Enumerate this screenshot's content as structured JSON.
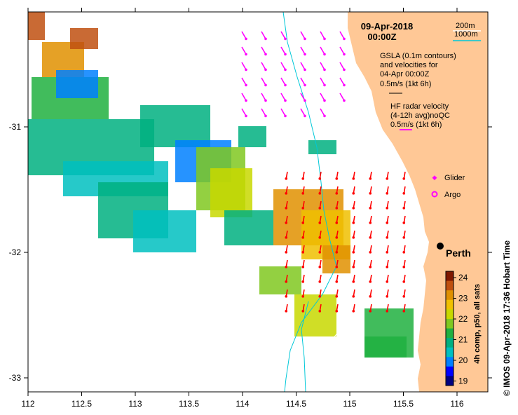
{
  "header": {
    "date": "09-Apr-2018",
    "time": "00:00Z"
  },
  "depth_legend": {
    "contour_200": "200m",
    "contour_1000": "1000m",
    "color_200": "#ffffff",
    "color_1000": "#00c8d8"
  },
  "gsla": {
    "line1": "GSLA (0.1m contours)",
    "line2": "and velocities for",
    "line3": "04-Apr 00:00Z",
    "scale": "0.5m/s (1kt 6h)",
    "arrow_color": "#000000"
  },
  "hf_radar": {
    "line1": "HF radar velocity",
    "line2": "(4-12h avg)noQC",
    "scale": "0.5m/s (1kt 6h)",
    "arrow_color": "#ff00ff"
  },
  "markers": {
    "glider_label": "Glider",
    "argo_label": "Argo",
    "glider_color": "#ff00ff",
    "argo_color": "#ff00ff"
  },
  "place": {
    "perth_label": "Perth"
  },
  "axes": {
    "x_ticks": [
      "112",
      "112.5",
      "113",
      "113.5",
      "114",
      "114.5",
      "115",
      "115.5",
      "116"
    ],
    "y_ticks": [
      "-31",
      "-32",
      "-33"
    ]
  },
  "colorbar": {
    "title": "4h comp, p50, all sats",
    "ticks": [
      "24",
      "23",
      "22",
      "21",
      "20",
      "19"
    ],
    "colors": [
      "#000080",
      "#0000ff",
      "#0080ff",
      "#00c0c0",
      "#00b080",
      "#20b040",
      "#80c820",
      "#c8d800",
      "#f0c000",
      "#e09000",
      "#c05010",
      "#801800"
    ]
  },
  "credit": "© IMOS 09-Apr-2018 17:36 Hobart Time",
  "sea_colors": {
    "land": "#ffc896",
    "current_arrows": "#ff0000"
  }
}
